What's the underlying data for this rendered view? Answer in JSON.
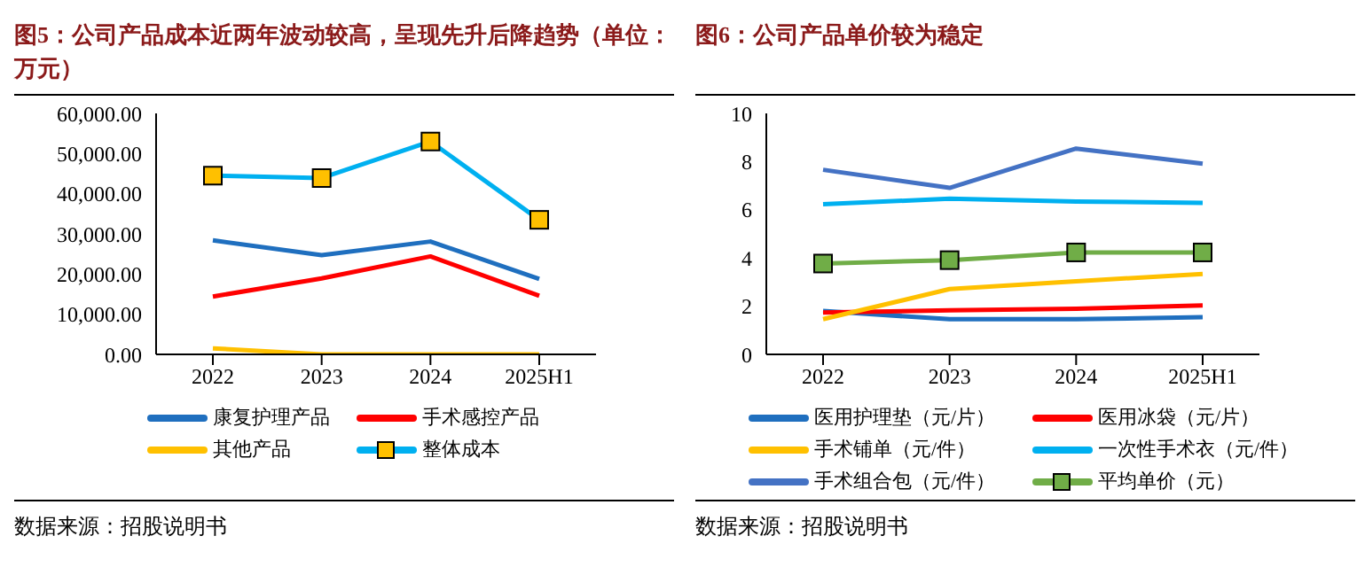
{
  "chart_data": [
    {
      "type": "line",
      "title": "图5：公司产品成本近两年波动较高，呈现先升后降趋势（单位：万元）",
      "categories": [
        "2022",
        "2023",
        "2024",
        "2025H1"
      ],
      "series": [
        {
          "name": "康复护理产品",
          "color": "#1f6fbf",
          "values": [
            28400,
            24700,
            28100,
            18800
          ]
        },
        {
          "name": "手术感控产品",
          "color": "#ff0000",
          "values": [
            14400,
            18900,
            24400,
            14600
          ]
        },
        {
          "name": "其他产品",
          "color": "#ffc000",
          "values": [
            1500,
            0,
            0,
            0
          ]
        },
        {
          "name": "整体成本",
          "color": "#00b0f0",
          "values": [
            44500,
            43900,
            53000,
            33500
          ],
          "marker": "square"
        }
      ],
      "ylim": [
        0,
        60000
      ],
      "yticks": [
        {
          "value": 0,
          "label": "0.00"
        },
        {
          "value": 10000,
          "label": "10,000.00"
        },
        {
          "value": 20000,
          "label": "20,000.00"
        },
        {
          "value": 30000,
          "label": "30,000.00"
        },
        {
          "value": 40000,
          "label": "40,000.00"
        },
        {
          "value": 50000,
          "label": "50,000.00"
        },
        {
          "value": 60000,
          "label": "60,000.00"
        }
      ],
      "legend": "bottom",
      "grid": false,
      "annotations": [
        "数据来源：招股说明书"
      ]
    },
    {
      "type": "line",
      "title": "图6：公司产品单价较为稳定",
      "categories": [
        "2022",
        "2023",
        "2024",
        "2025H1"
      ],
      "series": [
        {
          "name": "医用护理垫（元/片）",
          "color": "#1f6fbf",
          "values": [
            1.8,
            1.46,
            1.46,
            1.54
          ]
        },
        {
          "name": "医用冰袋（元/片）",
          "color": "#ff0000",
          "values": [
            1.74,
            1.83,
            1.89,
            2.03
          ]
        },
        {
          "name": "手术铺单（元/件）",
          "color": "#ffc000",
          "values": [
            1.46,
            2.71,
            3.03,
            3.34
          ]
        },
        {
          "name": "一次性手术衣（元/件）",
          "color": "#00b0f0",
          "values": [
            6.23,
            6.46,
            6.34,
            6.29
          ]
        },
        {
          "name": "手术组合包（元/件）",
          "color": "#4472c4",
          "values": [
            7.66,
            6.91,
            8.54,
            7.91
          ]
        },
        {
          "name": "平均单价（元）",
          "color": "#70ad47",
          "values": [
            3.77,
            3.91,
            4.23,
            4.23
          ],
          "marker": "square"
        }
      ],
      "ylim": [
        0,
        10
      ],
      "yticks": [
        0,
        2,
        4,
        6,
        8,
        10
      ],
      "legend": "bottom",
      "grid": false,
      "annotations": [
        "数据来源：招股说明书"
      ]
    }
  ]
}
